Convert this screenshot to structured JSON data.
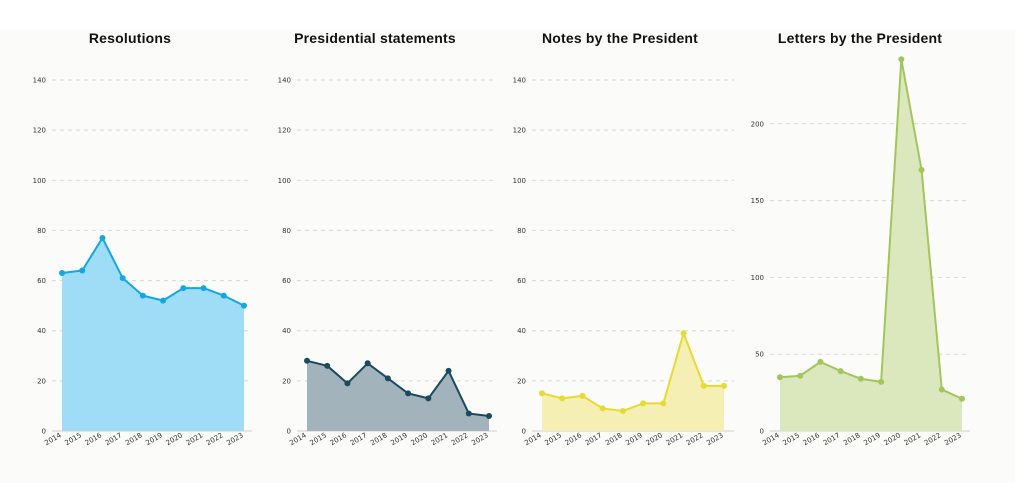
{
  "chart_data": [
    {
      "type": "area",
      "title": "Resolutions",
      "x": [
        "2014",
        "2015",
        "2016",
        "2017",
        "2018",
        "2019",
        "2020",
        "2021",
        "2022",
        "2023"
      ],
      "values": [
        63,
        64,
        77,
        61,
        54,
        52,
        57,
        57,
        54,
        50
      ],
      "yticks": [
        0,
        20,
        40,
        60,
        80,
        100,
        120,
        140
      ],
      "ylim": [
        0,
        140
      ],
      "grid": true,
      "color": "#13a8e3",
      "fill": "#9fdcf5"
    },
    {
      "type": "area",
      "title": "Presidential statements",
      "x": [
        "2014",
        "2015",
        "2016",
        "2017",
        "2018",
        "2019",
        "2020",
        "2021",
        "2022",
        "2023"
      ],
      "values": [
        28,
        26,
        19,
        27,
        21,
        15,
        13,
        24,
        7,
        6
      ],
      "yticks": [
        0,
        20,
        40,
        60,
        80,
        100,
        120,
        140
      ],
      "ylim": [
        0,
        140
      ],
      "grid": true,
      "color": "#1a4a5e",
      "fill": "#a3b3bb"
    },
    {
      "type": "area",
      "title": "Notes by the President",
      "x": [
        "2014",
        "2015",
        "2016",
        "2017",
        "2018",
        "2019",
        "2020",
        "2021",
        "2022",
        "2023"
      ],
      "values": [
        15,
        13,
        14,
        9,
        8,
        11,
        11,
        39,
        18,
        18
      ],
      "yticks": [
        0,
        20,
        40,
        60,
        80,
        100,
        120,
        140
      ],
      "ylim": [
        0,
        140
      ],
      "grid": true,
      "color": "#e6da33",
      "fill": "#f6efb4"
    },
    {
      "type": "area",
      "title": "Letters by the President",
      "x": [
        "2014",
        "2015",
        "2016",
        "2017",
        "2018",
        "2019",
        "2020",
        "2021",
        "2022",
        "2023"
      ],
      "values": [
        35,
        36,
        45,
        39,
        34,
        32,
        242,
        170,
        27,
        21
      ],
      "yticks": [
        0,
        50,
        100,
        150,
        200
      ],
      "ylim": [
        0,
        250
      ],
      "grid": true,
      "color": "#a3c65c",
      "fill": "#dbe7bd"
    }
  ]
}
